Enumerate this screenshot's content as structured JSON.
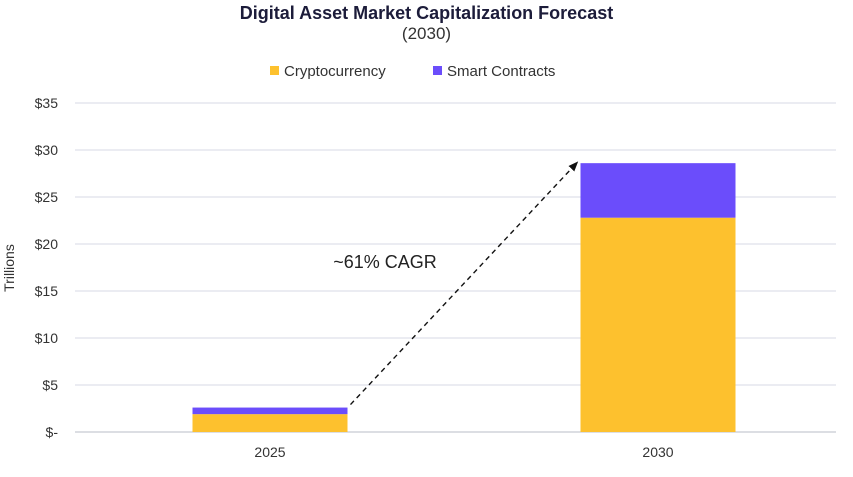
{
  "chart_data": {
    "type": "bar",
    "stacked": true,
    "title": "Digital Asset Market Capitalization Forecast",
    "subtitle": "(2030)",
    "ylabel": "Trillions",
    "xlabel": "",
    "categories": [
      "2025",
      "2030"
    ],
    "series": [
      {
        "name": "Cryptocurrency",
        "color": "#FDC12E",
        "values": [
          1.9,
          22.8
        ]
      },
      {
        "name": "Smart Contracts",
        "color": "#6B4DFB",
        "values": [
          0.7,
          5.8
        ]
      }
    ],
    "ylim": [
      0,
      35
    ],
    "yticks": [
      0,
      5,
      10,
      15,
      20,
      25,
      30,
      35
    ],
    "ytick_labels": [
      "$-",
      "$5",
      "$10",
      "$15",
      "$20",
      "$25",
      "$30",
      "$35"
    ],
    "grid": true,
    "legend_position": "top-center",
    "annotation": {
      "text": "~61% CAGR",
      "style": "dashed-arrow",
      "from": "2025",
      "to": "2030"
    }
  }
}
